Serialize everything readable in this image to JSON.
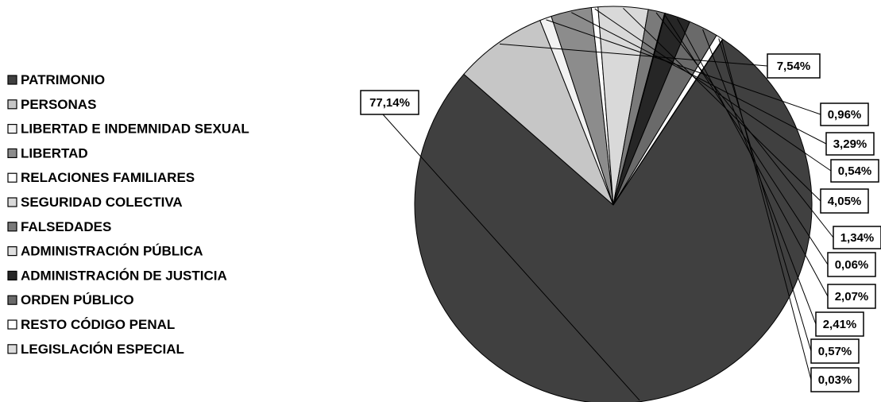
{
  "chart_data": {
    "type": "pie",
    "title": "",
    "series": [
      {
        "name": "PATRIMONIO",
        "value": 77.14,
        "label": "77,14%",
        "color": "#404040"
      },
      {
        "name": "PERSONAS",
        "value": 7.54,
        "label": "7,54%",
        "color": "#c6c6c6"
      },
      {
        "name": "LIBERTAD E INDEMNIDAD SEXUAL",
        "value": 0.96,
        "label": "0,96%",
        "color": "#f2f2f2"
      },
      {
        "name": "LIBERTAD",
        "value": 3.29,
        "label": "3,29%",
        "color": "#8c8c8c"
      },
      {
        "name": "RELACIONES FAMILIARES",
        "value": 0.54,
        "label": "0,54%",
        "color": "#ffffff"
      },
      {
        "name": "SEGURIDAD COLECTIVA",
        "value": 4.05,
        "label": "4,05%",
        "color": "#d9d9d9"
      },
      {
        "name": "FALSEDADES",
        "value": 1.34,
        "label": "1,34%",
        "color": "#7a7a7a"
      },
      {
        "name": "ADMINISTRACIÓN PÚBLICA",
        "value": 0.06,
        "label": "0,06%",
        "color": "#e0e0e0"
      },
      {
        "name": "ADMINISTRACIÓN DE JUSTICIA",
        "value": 2.07,
        "label": "2,07%",
        "color": "#262626"
      },
      {
        "name": "ORDEN PÚBLICO",
        "value": 2.41,
        "label": "2,41%",
        "color": "#6a6a6a"
      },
      {
        "name": "RESTO CÓDIGO PENAL",
        "value": 0.57,
        "label": "0,57%",
        "color": "#ffffff"
      },
      {
        "name": "LEGISLACIÓN ESPECIAL",
        "value": 0.03,
        "label": "0,03%",
        "color": "#dcdcdc"
      }
    ],
    "legend_position": "left",
    "start_angle_deg": 0,
    "direction": "clockwise"
  }
}
